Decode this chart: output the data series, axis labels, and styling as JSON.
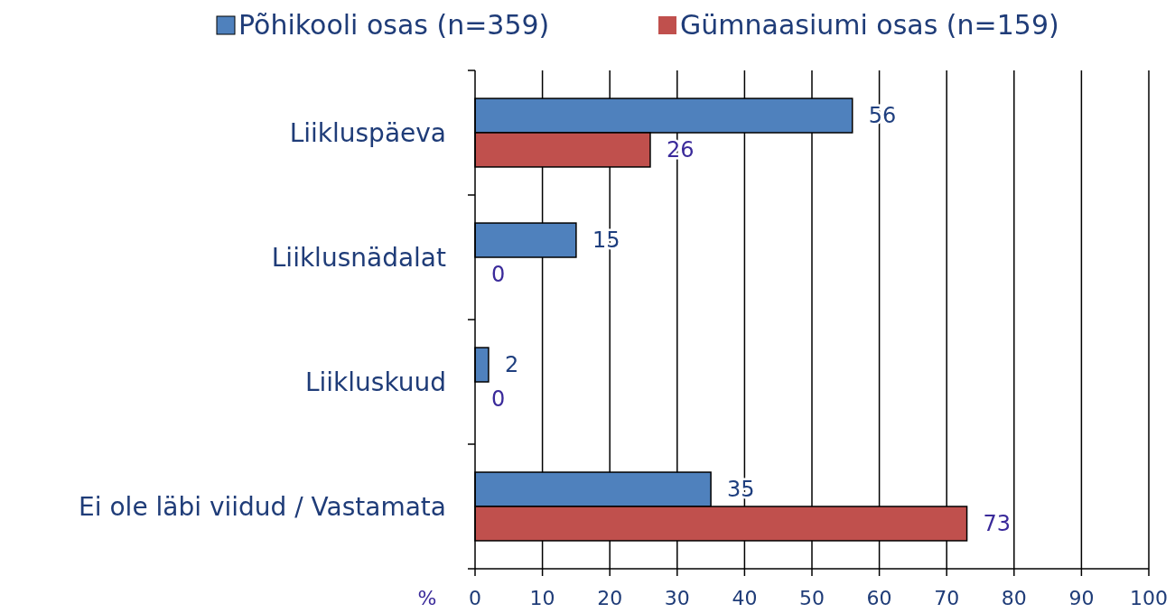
{
  "chart_data": {
    "type": "bar",
    "orientation": "horizontal",
    "xlabel": "%",
    "categories": [
      "Liikluspäeva",
      "Liiklusnädalat",
      "Liikluskuud",
      "Ei ole läbi viidud / Vastamata"
    ],
    "series": [
      {
        "name": "Põhikooli osas (n=359)",
        "color": "#4f81bd",
        "values": [
          56,
          15,
          2,
          35
        ]
      },
      {
        "name": "Gümnaasiumi osas (n=159)",
        "color": "#c0504d",
        "values": [
          26,
          0,
          0,
          73
        ]
      }
    ],
    "xlim": [
      0,
      100
    ],
    "xticks": [
      0,
      10,
      20,
      30,
      40,
      50,
      60,
      70,
      80,
      90,
      100
    ],
    "grid": "x",
    "legend": "top",
    "data_labels": true
  }
}
